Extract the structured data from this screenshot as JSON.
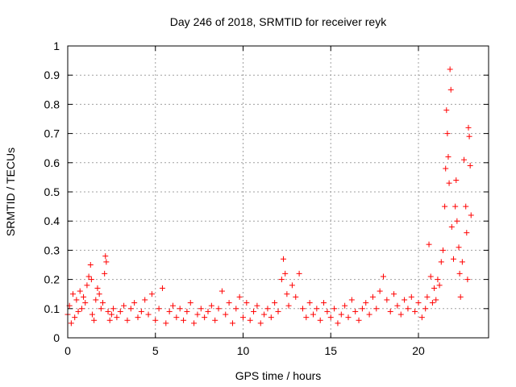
{
  "chart_data": {
    "type": "scatter",
    "title": "Day 246 of 2018, SRMTID for receiver reyk",
    "xlabel": "GPS time / hours",
    "ylabel": "SRMTID / TECUs",
    "xlim": [
      0,
      24
    ],
    "ylim": [
      0,
      1
    ],
    "xticks": [
      0,
      5,
      10,
      15,
      20
    ],
    "xtick_labels": [
      "0",
      "5",
      "10",
      "15",
      "20"
    ],
    "yticks": [
      0,
      0.1,
      0.2,
      0.3,
      0.4,
      0.5,
      0.6,
      0.7,
      0.8,
      0.9,
      1
    ],
    "ytick_labels": [
      "0",
      "0.1",
      "0.2",
      "0.3",
      "0.4",
      "0.5",
      "0.6",
      "0.7",
      "0.8",
      "0.9",
      "1"
    ],
    "grid": true,
    "marker": "+",
    "color": "#ff0000",
    "series": [
      {
        "name": "SRMTID",
        "points": [
          [
            0.0,
            0.08
          ],
          [
            0.1,
            0.11
          ],
          [
            0.2,
            0.05
          ],
          [
            0.3,
            0.15
          ],
          [
            0.4,
            0.07
          ],
          [
            0.5,
            0.13
          ],
          [
            0.6,
            0.09
          ],
          [
            0.7,
            0.16
          ],
          [
            0.8,
            0.1
          ],
          [
            0.9,
            0.14
          ],
          [
            1.0,
            0.12
          ],
          [
            1.1,
            0.18
          ],
          [
            1.2,
            0.21
          ],
          [
            1.3,
            0.25
          ],
          [
            1.35,
            0.2
          ],
          [
            1.4,
            0.08
          ],
          [
            1.5,
            0.06
          ],
          [
            1.6,
            0.13
          ],
          [
            1.7,
            0.17
          ],
          [
            1.8,
            0.15
          ],
          [
            1.9,
            0.1
          ],
          [
            2.0,
            0.12
          ],
          [
            2.1,
            0.22
          ],
          [
            2.15,
            0.28
          ],
          [
            2.2,
            0.26
          ],
          [
            2.3,
            0.09
          ],
          [
            2.4,
            0.06
          ],
          [
            2.5,
            0.08
          ],
          [
            2.6,
            0.1
          ],
          [
            2.8,
            0.07
          ],
          [
            3.0,
            0.09
          ],
          [
            3.2,
            0.11
          ],
          [
            3.4,
            0.06
          ],
          [
            3.6,
            0.1
          ],
          [
            3.8,
            0.12
          ],
          [
            4.0,
            0.07
          ],
          [
            4.2,
            0.09
          ],
          [
            4.4,
            0.13
          ],
          [
            4.6,
            0.08
          ],
          [
            4.8,
            0.15
          ],
          [
            5.0,
            0.06
          ],
          [
            5.2,
            0.1
          ],
          [
            5.4,
            0.17
          ],
          [
            5.6,
            0.05
          ],
          [
            5.8,
            0.09
          ],
          [
            6.0,
            0.11
          ],
          [
            6.2,
            0.07
          ],
          [
            6.4,
            0.1
          ],
          [
            6.6,
            0.06
          ],
          [
            6.8,
            0.09
          ],
          [
            7.0,
            0.12
          ],
          [
            7.2,
            0.05
          ],
          [
            7.4,
            0.08
          ],
          [
            7.6,
            0.1
          ],
          [
            7.8,
            0.07
          ],
          [
            8.0,
            0.09
          ],
          [
            8.2,
            0.11
          ],
          [
            8.4,
            0.06
          ],
          [
            8.6,
            0.1
          ],
          [
            8.8,
            0.16
          ],
          [
            9.0,
            0.08
          ],
          [
            9.2,
            0.12
          ],
          [
            9.4,
            0.05
          ],
          [
            9.6,
            0.1
          ],
          [
            9.8,
            0.14
          ],
          [
            10.0,
            0.07
          ],
          [
            10.2,
            0.12
          ],
          [
            10.4,
            0.06
          ],
          [
            10.6,
            0.09
          ],
          [
            10.8,
            0.11
          ],
          [
            11.0,
            0.05
          ],
          [
            11.2,
            0.08
          ],
          [
            11.4,
            0.1
          ],
          [
            11.6,
            0.07
          ],
          [
            11.8,
            0.12
          ],
          [
            12.0,
            0.09
          ],
          [
            12.2,
            0.2
          ],
          [
            12.3,
            0.27
          ],
          [
            12.4,
            0.22
          ],
          [
            12.5,
            0.15
          ],
          [
            12.6,
            0.11
          ],
          [
            12.8,
            0.18
          ],
          [
            13.0,
            0.14
          ],
          [
            13.2,
            0.22
          ],
          [
            13.4,
            0.1
          ],
          [
            13.6,
            0.07
          ],
          [
            13.8,
            0.12
          ],
          [
            14.0,
            0.08
          ],
          [
            14.2,
            0.1
          ],
          [
            14.4,
            0.06
          ],
          [
            14.6,
            0.12
          ],
          [
            14.8,
            0.09
          ],
          [
            15.0,
            0.07
          ],
          [
            15.2,
            0.1
          ],
          [
            15.4,
            0.05
          ],
          [
            15.6,
            0.08
          ],
          [
            15.8,
            0.11
          ],
          [
            16.0,
            0.07
          ],
          [
            16.2,
            0.13
          ],
          [
            16.4,
            0.09
          ],
          [
            16.6,
            0.06
          ],
          [
            16.8,
            0.1
          ],
          [
            17.0,
            0.12
          ],
          [
            17.2,
            0.08
          ],
          [
            17.4,
            0.14
          ],
          [
            17.6,
            0.1
          ],
          [
            17.8,
            0.16
          ],
          [
            18.0,
            0.21
          ],
          [
            18.2,
            0.13
          ],
          [
            18.4,
            0.09
          ],
          [
            18.6,
            0.15
          ],
          [
            18.8,
            0.11
          ],
          [
            19.0,
            0.08
          ],
          [
            19.2,
            0.13
          ],
          [
            19.4,
            0.1
          ],
          [
            19.6,
            0.14
          ],
          [
            19.8,
            0.09
          ],
          [
            20.0,
            0.12
          ],
          [
            20.2,
            0.07
          ],
          [
            20.4,
            0.1
          ],
          [
            20.5,
            0.14
          ],
          [
            20.6,
            0.32
          ],
          [
            20.7,
            0.21
          ],
          [
            20.8,
            0.12
          ],
          [
            20.9,
            0.17
          ],
          [
            21.0,
            0.13
          ],
          [
            21.1,
            0.2
          ],
          [
            21.2,
            0.18
          ],
          [
            21.3,
            0.26
          ],
          [
            21.4,
            0.3
          ],
          [
            21.5,
            0.45
          ],
          [
            21.55,
            0.58
          ],
          [
            21.6,
            0.78
          ],
          [
            21.65,
            0.7
          ],
          [
            21.7,
            0.62
          ],
          [
            21.75,
            0.53
          ],
          [
            21.8,
            0.92
          ],
          [
            21.85,
            0.85
          ],
          [
            21.9,
            0.38
          ],
          [
            22.0,
            0.27
          ],
          [
            22.1,
            0.45
          ],
          [
            22.15,
            0.54
          ],
          [
            22.2,
            0.4
          ],
          [
            22.3,
            0.31
          ],
          [
            22.35,
            0.22
          ],
          [
            22.4,
            0.14
          ],
          [
            22.5,
            0.26
          ],
          [
            22.6,
            0.61
          ],
          [
            22.7,
            0.45
          ],
          [
            22.75,
            0.36
          ],
          [
            22.8,
            0.2
          ],
          [
            22.85,
            0.72
          ],
          [
            22.9,
            0.69
          ],
          [
            22.95,
            0.59
          ],
          [
            23.0,
            0.42
          ]
        ]
      }
    ]
  }
}
